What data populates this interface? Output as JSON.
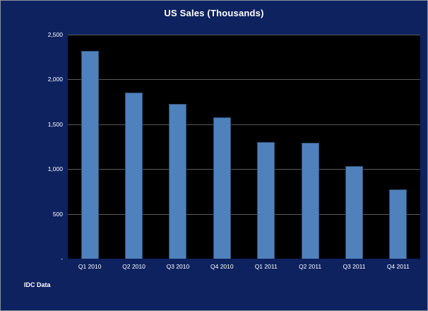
{
  "chart_data": {
    "type": "bar",
    "title": "US Sales (Thousands)",
    "categories": [
      "Q1 2010",
      "Q2 2010",
      "Q3 2010",
      "Q4 2010",
      "Q1 2011",
      "Q2 2011",
      "Q3 2011",
      "Q4 2011"
    ],
    "values": [
      2320,
      1855,
      1730,
      1580,
      1305,
      1290,
      1035,
      775
    ],
    "xlabel": "",
    "ylabel": "",
    "ylim": [
      0,
      2500
    ],
    "y_ticks": [
      "2,500",
      "2,000",
      "1,500",
      "1,000",
      "500",
      "-"
    ],
    "y_tick_values": [
      2500,
      2000,
      1500,
      1000,
      500,
      0
    ],
    "grid": true,
    "legend": false
  },
  "footer": {
    "source_label": "IDC Data"
  },
  "colors": {
    "background": "#0e2260",
    "plot_background": "#000000",
    "bar_fill": "#4f81bd",
    "bar_border": "#2c5175",
    "gridline": "#595959",
    "text": "#ffffff"
  }
}
